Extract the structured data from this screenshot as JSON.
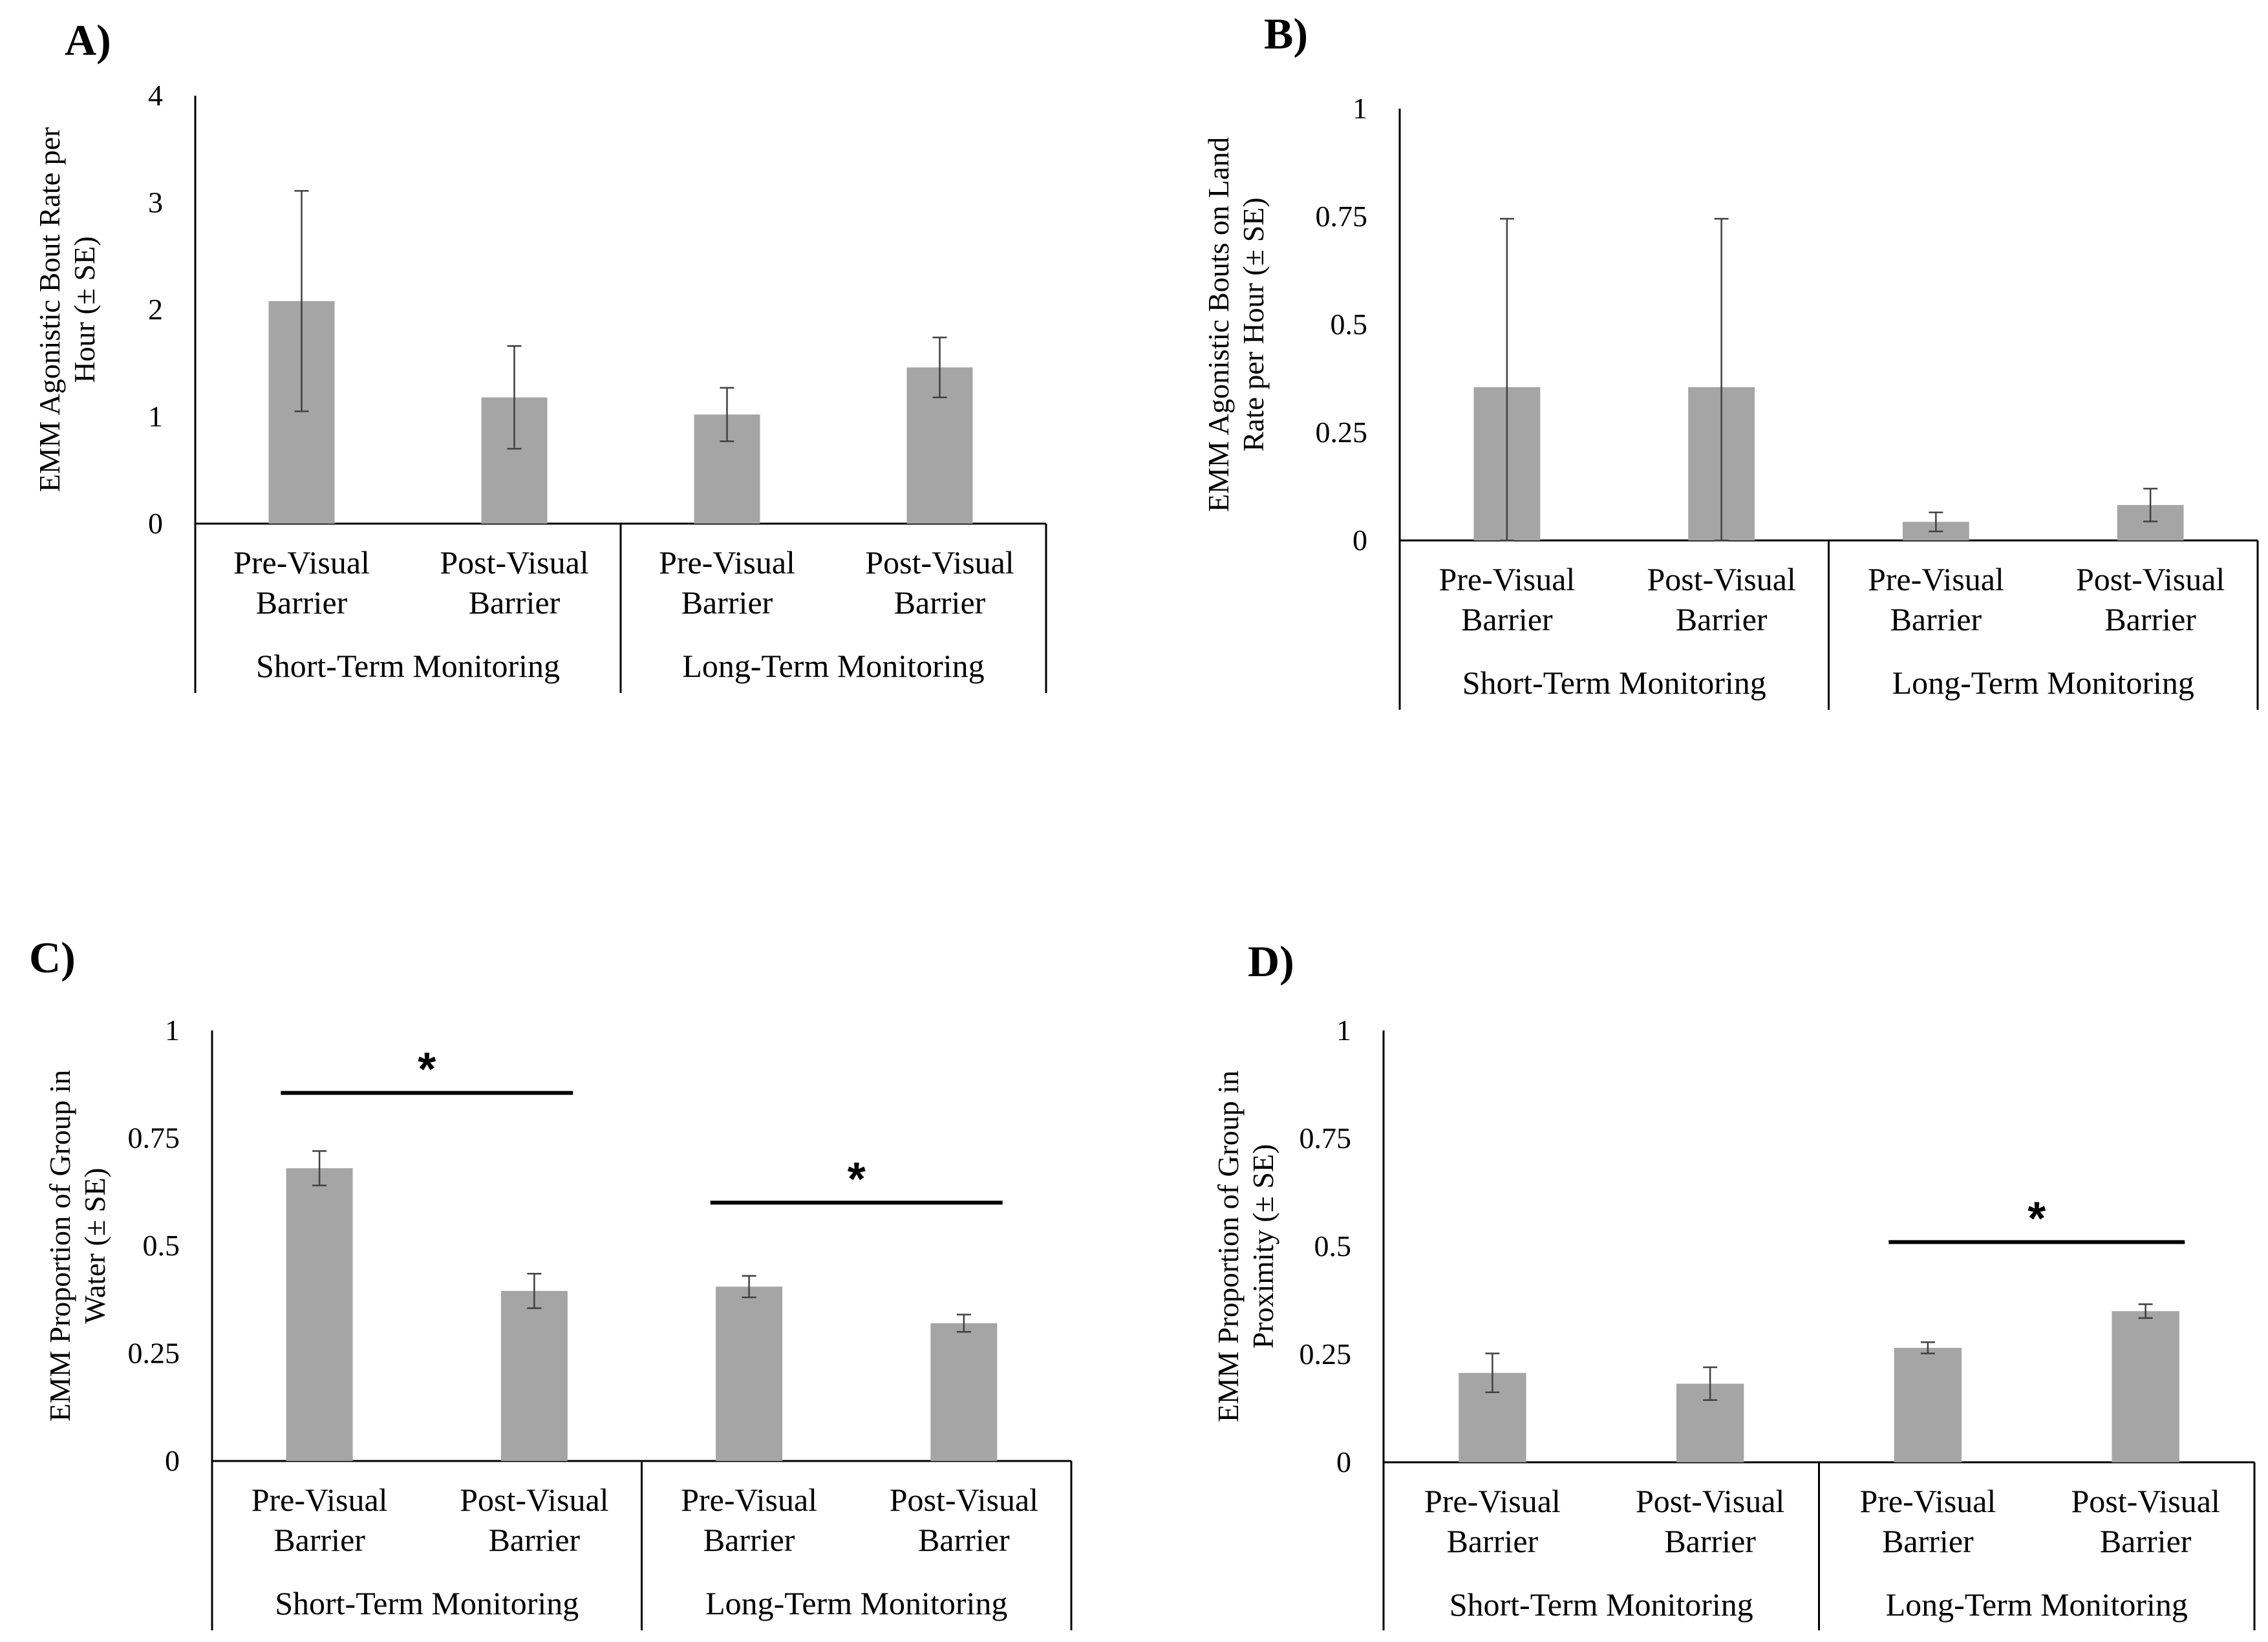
{
  "colors": {
    "bar": "#a5a5a5",
    "axis": "#000000",
    "error": "#404040",
    "background": "#ffffff"
  },
  "chart_data": [
    {
      "panel": "A)",
      "type": "bar",
      "categories": [
        "Pre-Visual Barrier",
        "Post-Visual Barrier",
        "Pre-Visual Barrier",
        "Post-Visual Barrier"
      ],
      "category_lines": [
        [
          "Pre-Visual",
          "Barrier"
        ],
        [
          "Post-Visual",
          "Barrier"
        ],
        [
          "Pre-Visual",
          "Barrier"
        ],
        [
          "Post-Visual",
          "Barrier"
        ]
      ],
      "groups": [
        "Short-Term Monitoring",
        "Long-Term Monitoring"
      ],
      "values": [
        2.08,
        1.18,
        1.02,
        1.46
      ],
      "errors": [
        1.03,
        0.48,
        0.25,
        0.28
      ],
      "ylim": [
        0,
        4
      ],
      "yticks": [
        0,
        1,
        2,
        3,
        4
      ],
      "ytick_labels": [
        "0",
        "1",
        "2",
        "3",
        "4"
      ],
      "ylabel_lines": [
        "EMM Agonistic Bout Rate per",
        "Hour (± SE)"
      ],
      "significance": []
    },
    {
      "panel": "B)",
      "type": "bar",
      "categories": [
        "Pre-Visual Barrier",
        "Post-Visual Barrier",
        "Pre-Visual Barrier",
        "Post-Visual Barrier"
      ],
      "category_lines": [
        [
          "Pre-Visual",
          "Barrier"
        ],
        [
          "Post-Visual",
          "Barrier"
        ],
        [
          "Pre-Visual",
          "Barrier"
        ],
        [
          "Post-Visual",
          "Barrier"
        ]
      ],
      "groups": [
        "Short-Term Monitoring",
        "Long-Term Monitoring"
      ],
      "values": [
        0.355,
        0.355,
        0.043,
        0.082
      ],
      "errors": [
        0.39,
        0.39,
        0.022,
        0.038
      ],
      "ylim": [
        0,
        1
      ],
      "yticks": [
        0,
        0.25,
        0.5,
        0.75,
        1
      ],
      "ytick_labels": [
        "0",
        "0.25",
        "0.5",
        "0.75",
        "1"
      ],
      "ylabel_lines": [
        "EMM Agonistic Bouts on Land",
        "Rate per Hour (± SE)"
      ],
      "significance": []
    },
    {
      "panel": "C)",
      "type": "bar",
      "categories": [
        "Pre-Visual Barrier",
        "Post-Visual Barrier",
        "Pre-Visual Barrier",
        "Post-Visual Barrier"
      ],
      "category_lines": [
        [
          "Pre-Visual",
          "Barrier"
        ],
        [
          "Post-Visual",
          "Barrier"
        ],
        [
          "Pre-Visual",
          "Barrier"
        ],
        [
          "Post-Visual",
          "Barrier"
        ]
      ],
      "groups": [
        "Short-Term Monitoring",
        "Long-Term Monitoring"
      ],
      "values": [
        0.68,
        0.395,
        0.405,
        0.32
      ],
      "errors": [
        0.04,
        0.04,
        0.025,
        0.02
      ],
      "ylim": [
        0,
        1
      ],
      "yticks": [
        0,
        0.25,
        0.5,
        0.75,
        1
      ],
      "ytick_labels": [
        "0",
        "0.25",
        "0.5",
        "0.75",
        "1"
      ],
      "ylabel_lines": [
        "EMM Proportion of Group in",
        "Water (± SE)"
      ],
      "significance": [
        {
          "from": 0,
          "to": 1,
          "y": 0.855,
          "label": "*"
        },
        {
          "from": 2,
          "to": 3,
          "y": 0.6,
          "label": "*"
        }
      ]
    },
    {
      "panel": "D)",
      "type": "bar",
      "categories": [
        "Pre-Visual Barrier",
        "Post-Visual Barrier",
        "Pre-Visual Barrier",
        "Post-Visual Barrier"
      ],
      "category_lines": [
        [
          "Pre-Visual",
          "Barrier"
        ],
        [
          "Post-Visual",
          "Barrier"
        ],
        [
          "Pre-Visual",
          "Barrier"
        ],
        [
          "Post-Visual",
          "Barrier"
        ]
      ],
      "groups": [
        "Short-Term Monitoring",
        "Long-Term Monitoring"
      ],
      "values": [
        0.207,
        0.182,
        0.265,
        0.35
      ],
      "errors": [
        0.045,
        0.038,
        0.013,
        0.016
      ],
      "ylim": [
        0,
        1
      ],
      "yticks": [
        0,
        0.25,
        0.5,
        0.75,
        1
      ],
      "ytick_labels": [
        "0",
        "0.25",
        "0.5",
        "0.75",
        "1"
      ],
      "ylabel_lines": [
        "EMM Proportion of Group in",
        "Proximity (± SE)"
      ],
      "significance": [
        {
          "from": 2,
          "to": 3,
          "y": 0.51,
          "label": "*"
        }
      ]
    }
  ]
}
